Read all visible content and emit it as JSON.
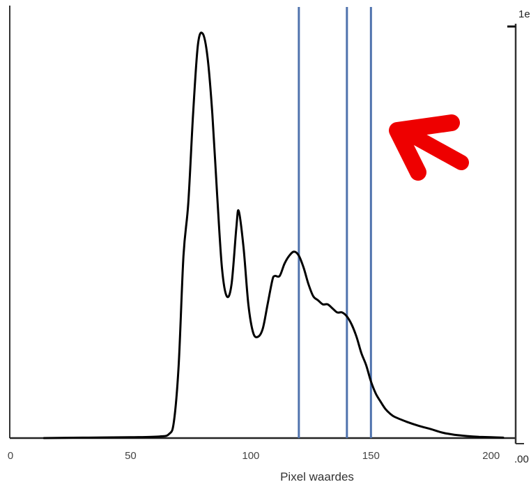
{
  "chart_data": {
    "type": "line",
    "xlabel": "Pixel waardes",
    "ylabel": "",
    "xlim": [
      0,
      205
    ],
    "ylim": [
      0,
      1
    ],
    "x_ticks": [
      0,
      50,
      100,
      150,
      200
    ],
    "y_ticks": [],
    "grid": false,
    "series": [
      {
        "color": "#000000",
        "x": [
          14,
          30,
          50,
          62,
          66,
          68,
          70,
          72,
          74,
          76,
          78,
          80,
          82,
          84,
          86,
          88,
          90,
          92,
          94,
          95,
          97,
          99,
          101,
          103,
          105,
          107,
          109,
          110,
          112,
          114,
          116,
          118,
          120,
          122,
          124,
          126,
          128,
          130,
          132,
          134,
          136,
          138,
          140,
          142,
          144,
          146,
          148,
          150,
          152,
          154,
          156,
          158,
          160,
          165,
          170,
          175,
          180,
          185,
          190,
          195,
          200,
          205
        ],
        "y": [
          0.0,
          0.001,
          0.002,
          0.004,
          0.01,
          0.04,
          0.18,
          0.45,
          0.58,
          0.8,
          0.97,
          0.998,
          0.94,
          0.8,
          0.6,
          0.42,
          0.35,
          0.38,
          0.52,
          0.56,
          0.47,
          0.33,
          0.26,
          0.25,
          0.27,
          0.33,
          0.39,
          0.4,
          0.4,
          0.43,
          0.45,
          0.46,
          0.45,
          0.42,
          0.38,
          0.35,
          0.34,
          0.33,
          0.33,
          0.32,
          0.31,
          0.31,
          0.3,
          0.28,
          0.25,
          0.21,
          0.18,
          0.14,
          0.11,
          0.09,
          0.072,
          0.06,
          0.052,
          0.04,
          0.03,
          0.022,
          0.013,
          0.008,
          0.005,
          0.003,
          0.002,
          0.001
        ]
      }
    ],
    "vlines": [
      {
        "x": 120,
        "color": "#4f72ad"
      },
      {
        "x": 140,
        "color": "#4f72ad"
      },
      {
        "x": 150,
        "color": "#4f72ad"
      }
    ],
    "annotations": [
      {
        "type": "arrow",
        "color": "#ee0000",
        "points_to_x": 150
      }
    ],
    "right_axis": {
      "top_label": "1e",
      "bottom_label": ".00"
    }
  }
}
